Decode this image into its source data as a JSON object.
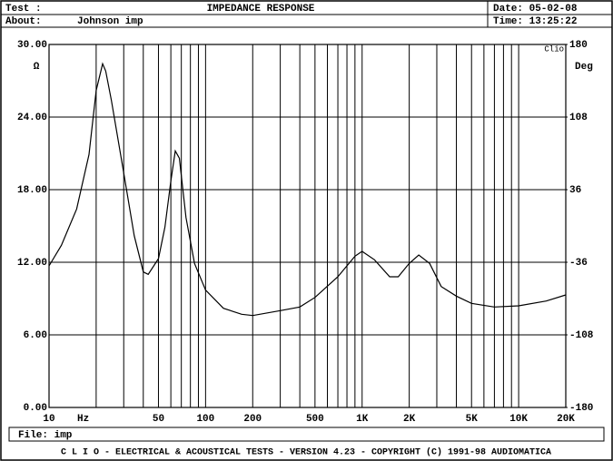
{
  "header": {
    "test_label": "Test :",
    "title": "IMPEDANCE RESPONSE",
    "date": "Date: 05-02-08",
    "about_label": "About:",
    "about": "Johnson imp",
    "time": "Time: 13:25:22",
    "file": "File: imp",
    "footer": "C L I O  -  ELECTRICAL & ACOUSTICAL TESTS  -  VERSION 4.23  -  COPYRIGHT (C) 1991-98 AUDIOMATICA"
  },
  "chart_data": {
    "type": "line",
    "xscale": "log",
    "color": "#000000",
    "grid": true,
    "y_unit": "Ω",
    "y2_unit": "Deg",
    "x_unit": "Hz",
    "badge": "Clio",
    "xlim": [
      10,
      20000
    ],
    "ylim": [
      0,
      30
    ],
    "y2lim": [
      -180,
      180
    ],
    "xticks": [
      10,
      50,
      100,
      200,
      500,
      {
        "value": 1000,
        "label": "1K"
      },
      {
        "value": 2000,
        "label": "2K"
      },
      {
        "value": 5000,
        "label": "5K"
      },
      {
        "value": 10000,
        "label": "10K"
      },
      {
        "value": 20000,
        "label": "20K"
      }
    ],
    "minor_xticks": [
      20,
      30,
      40,
      60,
      70,
      80,
      90,
      300,
      400,
      600,
      700,
      800,
      900,
      3000,
      4000,
      6000,
      7000,
      8000,
      9000
    ],
    "yticks": [
      {
        "value": 0,
        "label": "0.00"
      },
      {
        "value": 6,
        "label": "6.00"
      },
      {
        "value": 12,
        "label": "12.00"
      },
      {
        "value": 18,
        "label": "18.00"
      },
      {
        "value": 24,
        "label": "24.00"
      },
      {
        "value": 30,
        "label": "30.00"
      }
    ],
    "y2ticks": [
      -180,
      -108,
      -36,
      36,
      108,
      180
    ],
    "x": [
      10,
      12,
      15,
      18,
      20,
      22,
      23,
      25,
      30,
      35,
      40,
      43,
      50,
      55,
      60,
      64,
      68,
      75,
      85,
      100,
      130,
      170,
      200,
      300,
      400,
      500,
      700,
      900,
      1000,
      1200,
      1500,
      1700,
      2000,
      2300,
      2700,
      3200,
      4000,
      5000,
      7000,
      10000,
      15000,
      20000
    ],
    "values": [
      11.7,
      13.4,
      16.4,
      20.9,
      26.2,
      28.4,
      27.8,
      25.4,
      19.4,
      14.2,
      11.2,
      11.0,
      12.3,
      14.9,
      18.7,
      21.2,
      20.6,
      15.7,
      11.9,
      9.7,
      8.2,
      7.7,
      7.6,
      8.0,
      8.3,
      9.1,
      10.8,
      12.5,
      12.9,
      12.2,
      10.8,
      10.8,
      11.9,
      12.6,
      11.9,
      10.0,
      9.2,
      8.6,
      8.3,
      8.4,
      8.8,
      9.3
    ]
  }
}
